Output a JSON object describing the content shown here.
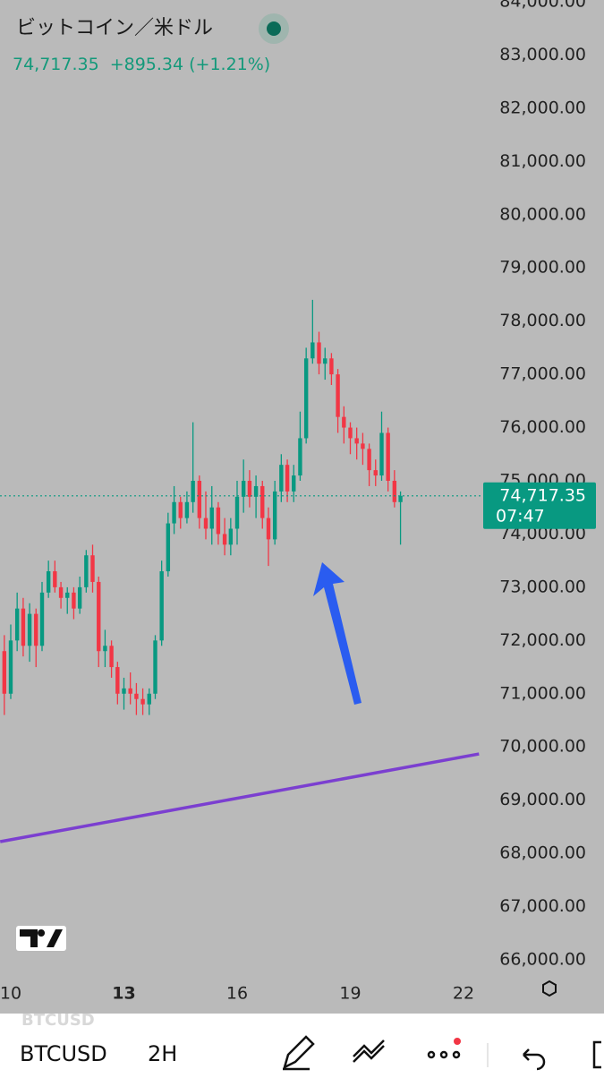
{
  "chart_data": {
    "type": "candlestick",
    "title": "ビットコイン／米ドル",
    "price": "74,717.35",
    "change": "+895.34",
    "change_pct": "(+1.21%)",
    "last_price": {
      "value": 74717.35,
      "label": "74,717.35"
    },
    "countdown": "07:47",
    "symbol": "BTCUSD",
    "interval": "2H",
    "watermark": "BTCUSD",
    "up_color": "#089981",
    "down_color": "#f23645",
    "x": [
      9.83,
      10,
      10.17,
      10.33,
      10.5,
      10.67,
      10.83,
      11,
      11.17,
      11.33,
      11.5,
      11.67,
      11.83,
      12,
      12.17,
      12.33,
      12.5,
      12.67,
      12.83,
      13,
      13.17,
      13.33,
      13.5,
      13.67,
      13.83,
      14,
      14.17,
      14.33,
      14.5,
      14.67,
      14.83,
      15,
      15.17,
      15.33,
      15.5,
      15.67,
      15.83,
      16,
      16.17,
      16.33,
      16.5,
      16.67,
      16.83,
      17,
      17.17,
      17.33,
      17.5,
      17.67,
      17.83,
      18,
      18.17,
      18.33,
      18.5,
      18.67,
      18.83,
      19,
      19.17,
      19.33,
      19.5,
      19.67,
      19.83,
      20,
      20.17,
      20.33
    ],
    "open": [
      71800,
      71000,
      72000,
      72600,
      71900,
      72500,
      71900,
      72900,
      73300,
      73000,
      72800,
      72900,
      72600,
      73000,
      73600,
      73100,
      71800,
      71900,
      71500,
      71000,
      71100,
      71000,
      70900,
      70800,
      71000,
      72000,
      73300,
      74200,
      74600,
      74300,
      74600,
      75000,
      74300,
      74100,
      74500,
      74000,
      73800,
      74100,
      74700,
      75000,
      74700,
      74900,
      74300,
      73900,
      74800,
      75300,
      74800,
      75100,
      75800,
      77300,
      77600,
      77200,
      77300,
      77000,
      76200,
      76000,
      75800,
      75700,
      75600,
      75200,
      75100,
      75900,
      75000,
      74600
    ],
    "high": [
      72100,
      72300,
      72900,
      72800,
      72700,
      72600,
      73100,
      73500,
      73500,
      73100,
      73000,
      73000,
      73200,
      73700,
      73800,
      73200,
      72200,
      72000,
      71600,
      71300,
      71400,
      71200,
      71100,
      71100,
      72100,
      73500,
      74400,
      74900,
      74700,
      74800,
      76100,
      75100,
      74800,
      74900,
      74600,
      74300,
      74300,
      75000,
      75400,
      75200,
      75100,
      75000,
      74500,
      75000,
      75500,
      75400,
      75300,
      76300,
      77500,
      78400,
      77800,
      77500,
      77400,
      77100,
      76400,
      76100,
      76000,
      75900,
      75700,
      75400,
      76300,
      76000,
      75200,
      74800
    ],
    "low": [
      70600,
      70900,
      71800,
      71700,
      71600,
      71500,
      71800,
      72800,
      72900,
      72600,
      72500,
      72400,
      72500,
      72900,
      72900,
      71500,
      71500,
      71300,
      70800,
      70700,
      70800,
      70600,
      70600,
      70600,
      70900,
      71900,
      73200,
      74000,
      74100,
      74200,
      74400,
      74100,
      73900,
      73800,
      73800,
      73600,
      73600,
      73800,
      74400,
      74500,
      74300,
      74100,
      73400,
      73800,
      74600,
      74600,
      74600,
      75000,
      75700,
      77200,
      77000,
      76900,
      76800,
      75900,
      75700,
      75500,
      75400,
      75300,
      74900,
      74900,
      75000,
      74800,
      74500,
      73800
    ],
    "close": [
      71000,
      72000,
      72600,
      71900,
      72500,
      71900,
      72900,
      73300,
      73000,
      72800,
      72900,
      72600,
      73000,
      73600,
      73100,
      71800,
      71900,
      71500,
      71000,
      71100,
      71000,
      70900,
      70800,
      71000,
      72000,
      73300,
      74200,
      74600,
      74300,
      74600,
      75000,
      74300,
      74100,
      74500,
      74000,
      73800,
      74100,
      74700,
      75000,
      74700,
      74900,
      74300,
      73900,
      74800,
      75300,
      74800,
      75100,
      75800,
      77300,
      77600,
      77200,
      77300,
      77000,
      76200,
      76000,
      75800,
      75700,
      75600,
      75200,
      75100,
      75900,
      75000,
      74600,
      74717.35
    ],
    "trendline": {
      "x": [
        9.72,
        22.41
      ],
      "values": [
        68220,
        69868
      ],
      "color": "#7b3fd0"
    },
    "xlim": [
      10,
      22
    ],
    "xticks": [
      10,
      13,
      16,
      19,
      22
    ],
    "ylim": [
      66000,
      84000
    ],
    "yticks": [
      {
        "value": 66000,
        "label": "66,000.00"
      },
      {
        "value": 67000,
        "label": "67,000.00"
      },
      {
        "value": 68000,
        "label": "68,000.00"
      },
      {
        "value": 69000,
        "label": "69,000.00"
      },
      {
        "value": 70000,
        "label": "70,000.00"
      },
      {
        "value": 71000,
        "label": "71,000.00"
      },
      {
        "value": 72000,
        "label": "72,000.00"
      },
      {
        "value": 73000,
        "label": "73,000.00"
      },
      {
        "value": 74000,
        "label": "74,000.00"
      },
      {
        "value": 75000,
        "label": "75,000.00"
      },
      {
        "value": 76000,
        "label": "76,000.00"
      },
      {
        "value": 77000,
        "label": "77,000.00"
      },
      {
        "value": 78000,
        "label": "78,000.00"
      },
      {
        "value": 79000,
        "label": "79,000.00"
      },
      {
        "value": 80000,
        "label": "80,000.00"
      },
      {
        "value": 81000,
        "label": "81,000.00"
      },
      {
        "value": 82000,
        "label": "82,000.00"
      },
      {
        "value": 83000,
        "label": "83,000.00"
      },
      {
        "value": 84000,
        "label": "84,000.00"
      }
    ]
  }
}
